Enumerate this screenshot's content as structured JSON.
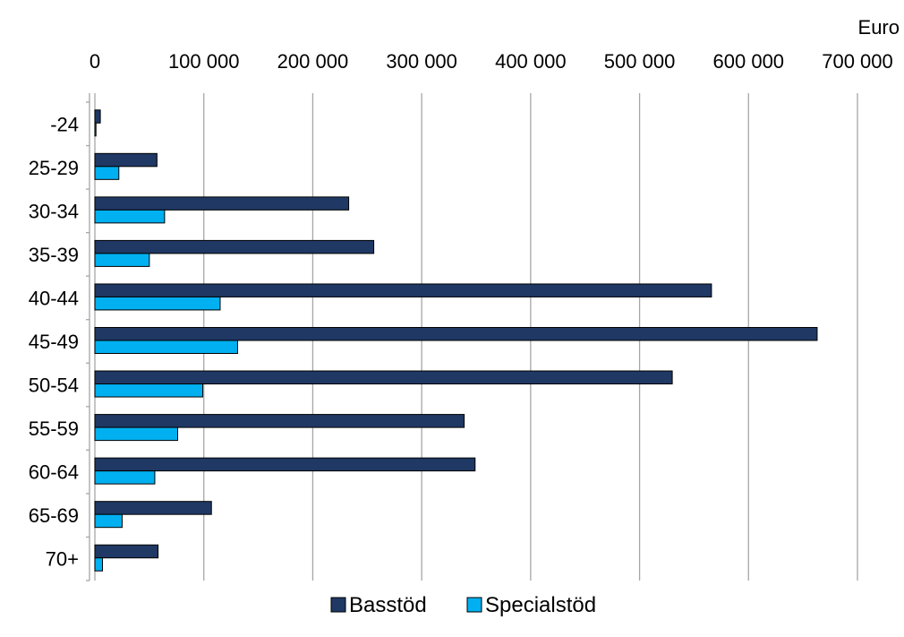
{
  "chart_data": {
    "type": "bar",
    "orientation": "horizontal",
    "unit_label": "Euro",
    "categories": [
      "-24",
      "25-29",
      "30-34",
      "35-39",
      "40-44",
      "45-49",
      "50-54",
      "55-59",
      "60-64",
      "65-69",
      "70+"
    ],
    "series": [
      {
        "name": "Basstöd",
        "color": "#1f3864",
        "values": [
          5000,
          57000,
          233000,
          256000,
          566000,
          663000,
          530000,
          339000,
          349000,
          107000,
          58000
        ]
      },
      {
        "name": "Specialstöd",
        "color": "#00b0f0",
        "values": [
          1000,
          22000,
          64000,
          50000,
          115000,
          131000,
          99000,
          76000,
          55000,
          25000,
          7000
        ]
      }
    ],
    "xlim": [
      0,
      700000
    ],
    "x_ticks": [
      0,
      100000,
      200000,
      300000,
      400000,
      500000,
      600000,
      700000
    ],
    "x_tick_labels": [
      "0",
      "100 000",
      "200 000",
      "300 000",
      "400 000",
      "500 000",
      "600 000",
      "700 000"
    ],
    "x_axis_position": "top",
    "grid": "vertical",
    "legend_position": "bottom"
  }
}
